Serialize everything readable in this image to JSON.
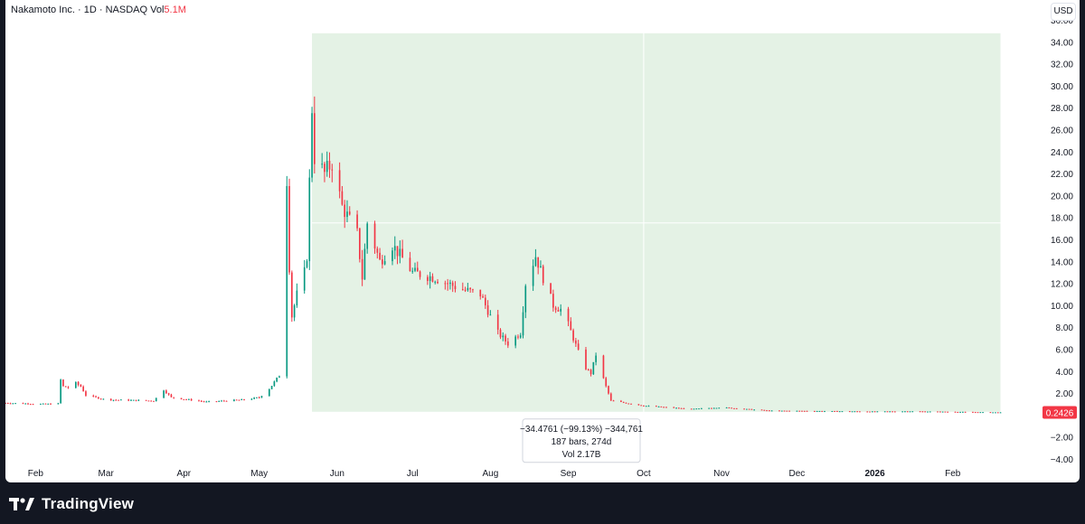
{
  "header": {
    "symbol_title": "Nakamoto Inc.",
    "separator": "·",
    "interval": "1D",
    "exchange": "NASDAQ",
    "volume_label": "Vol",
    "volume_value": "5.1M",
    "currency": "USD"
  },
  "measurement": {
    "line1": "−34.4761 (−99.13%) −344,761",
    "line2": "187 bars, 274d",
    "line3": "Vol 2.17B",
    "start_price": 34.78,
    "end_price": 0.3,
    "start_date": "2025-05-22",
    "end_date": "2026-02-20"
  },
  "current_price_label": "0.2426",
  "footer": {
    "brand": "TradingView"
  },
  "colors": {
    "up": "#089981",
    "down": "#f23645",
    "measure_fill": "#e4f2e5",
    "price_tag": "#f23645",
    "grid_text": "#131722",
    "background": "#ffffff",
    "footer_bg": "#131722"
  },
  "chart_data": {
    "type": "candlestick",
    "y_axis": {
      "min": -4,
      "max": 36,
      "ticks": [
        "36.00",
        "34.00",
        "32.00",
        "30.00",
        "28.00",
        "26.00",
        "24.00",
        "22.00",
        "20.00",
        "18.00",
        "16.00",
        "14.00",
        "12.00",
        "10.00",
        "8.00",
        "6.00",
        "4.00",
        "2.00",
        "−2.00",
        "−4.00"
      ],
      "tick_values": [
        36,
        34,
        32,
        30,
        28,
        26,
        24,
        22,
        20,
        18,
        16,
        14,
        12,
        10,
        8,
        6,
        4,
        2,
        -2,
        -4
      ]
    },
    "x_axis": {
      "start": "2025-01-20",
      "end": "2026-03-08",
      "labels": [
        {
          "text": "Feb",
          "date": "2025-02-01",
          "bold": false
        },
        {
          "text": "Mar",
          "date": "2025-03-01",
          "bold": false
        },
        {
          "text": "Apr",
          "date": "2025-04-01",
          "bold": false
        },
        {
          "text": "May",
          "date": "2025-05-01",
          "bold": false
        },
        {
          "text": "Jun",
          "date": "2025-06-01",
          "bold": false
        },
        {
          "text": "Jul",
          "date": "2025-07-01",
          "bold": false
        },
        {
          "text": "Aug",
          "date": "2025-08-01",
          "bold": false
        },
        {
          "text": "Sep",
          "date": "2025-09-01",
          "bold": false
        },
        {
          "text": "Oct",
          "date": "2025-10-01",
          "bold": false
        },
        {
          "text": "Nov",
          "date": "2025-11-01",
          "bold": false
        },
        {
          "text": "Dec",
          "date": "2025-12-01",
          "bold": false
        },
        {
          "text": "2026",
          "date": "2026-01-01",
          "bold": true
        },
        {
          "text": "Feb",
          "date": "2026-02-01",
          "bold": false
        }
      ]
    },
    "crosshair": {
      "date": "2025-10-01",
      "price": 17.5
    },
    "series": [
      {
        "anchors": [
          {
            "date": "2025-01-20",
            "price": 1.1
          },
          {
            "date": "2025-02-05",
            "price": 1.0
          },
          {
            "date": "2025-02-10",
            "price": 1.05
          },
          {
            "date": "2025-02-11",
            "price": 3.2
          },
          {
            "date": "2025-02-12",
            "price": 2.6
          },
          {
            "date": "2025-02-14",
            "price": 2.5
          },
          {
            "date": "2025-02-17",
            "price": 2.9
          },
          {
            "date": "2025-02-19",
            "price": 2.6
          },
          {
            "date": "2025-02-21",
            "price": 1.8
          },
          {
            "date": "2025-03-01",
            "price": 1.4
          },
          {
            "date": "2025-03-20",
            "price": 1.3
          },
          {
            "date": "2025-03-24",
            "price": 2.3
          },
          {
            "date": "2025-03-27",
            "price": 1.6
          },
          {
            "date": "2025-04-10",
            "price": 1.2
          },
          {
            "date": "2025-04-25",
            "price": 1.4
          },
          {
            "date": "2025-05-01",
            "price": 1.6
          },
          {
            "date": "2025-05-05",
            "price": 2.4
          },
          {
            "date": "2025-05-09",
            "price": 3.6
          },
          {
            "date": "2025-05-12",
            "price": 21.5
          },
          {
            "date": "2025-05-13",
            "price": 13.5
          },
          {
            "date": "2025-05-14",
            "price": 9.0
          },
          {
            "date": "2025-05-16",
            "price": 11.0
          },
          {
            "date": "2025-05-19",
            "price": 13.0
          },
          {
            "date": "2025-05-20",
            "price": 14.5
          },
          {
            "date": "2025-05-22",
            "price": 28.0
          },
          {
            "date": "2025-05-23",
            "price": 23.5
          },
          {
            "date": "2025-05-27",
            "price": 22.0
          },
          {
            "date": "2025-05-30",
            "price": 23.0
          },
          {
            "date": "2025-06-03",
            "price": 19.0
          },
          {
            "date": "2025-06-09",
            "price": 16.5
          },
          {
            "date": "2025-06-11",
            "price": 12.5
          },
          {
            "date": "2025-06-13",
            "price": 17.5
          },
          {
            "date": "2025-06-18",
            "price": 14.0
          },
          {
            "date": "2025-06-23",
            "price": 15.5
          },
          {
            "date": "2025-07-01",
            "price": 13.0
          },
          {
            "date": "2025-07-10",
            "price": 12.5
          },
          {
            "date": "2025-07-20",
            "price": 11.5
          },
          {
            "date": "2025-07-28",
            "price": 11.0
          },
          {
            "date": "2025-08-04",
            "price": 7.5
          },
          {
            "date": "2025-08-08",
            "price": 6.5
          },
          {
            "date": "2025-08-13",
            "price": 7.5
          },
          {
            "date": "2025-08-15",
            "price": 12.0
          },
          {
            "date": "2025-08-19",
            "price": 14.5
          },
          {
            "date": "2025-08-22",
            "price": 12.5
          },
          {
            "date": "2025-08-26",
            "price": 10.0
          },
          {
            "date": "2025-08-30",
            "price": 9.5
          },
          {
            "date": "2025-09-03",
            "price": 7.0
          },
          {
            "date": "2025-09-07",
            "price": 4.5
          },
          {
            "date": "2025-09-10",
            "price": 3.8
          },
          {
            "date": "2025-09-12",
            "price": 5.5
          },
          {
            "date": "2025-09-14",
            "price": 4.0
          },
          {
            "date": "2025-09-16",
            "price": 2.6
          },
          {
            "date": "2025-09-18",
            "price": 1.3
          },
          {
            "date": "2025-10-01",
            "price": 0.85
          },
          {
            "date": "2025-10-20",
            "price": 0.55
          },
          {
            "date": "2025-11-01",
            "price": 0.7
          },
          {
            "date": "2025-11-20",
            "price": 0.4
          },
          {
            "date": "2026-01-01",
            "price": 0.32
          },
          {
            "date": "2026-01-15",
            "price": 0.34
          },
          {
            "date": "2026-02-20",
            "price": 0.24
          }
        ]
      }
    ]
  }
}
